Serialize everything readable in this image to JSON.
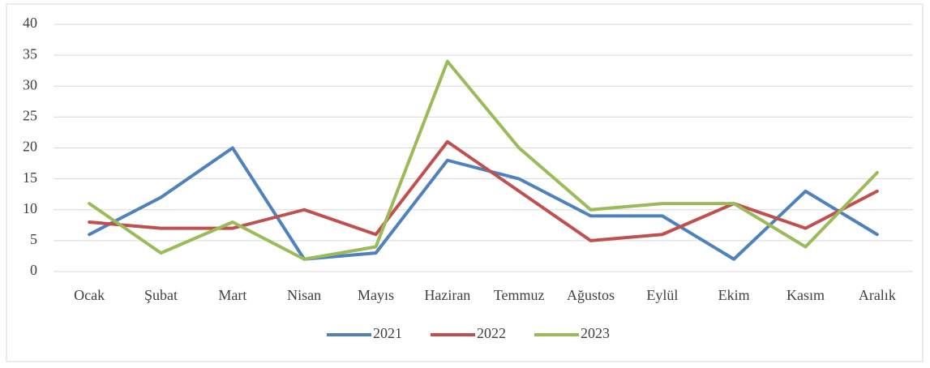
{
  "chart_data": {
    "type": "line",
    "categories": [
      "Ocak",
      "Şubat",
      "Mart",
      "Nisan",
      "Mayıs",
      "Haziran",
      "Temmuz",
      "Ağustos",
      "Eylül",
      "Ekim",
      "Kasım",
      "Aralık"
    ],
    "series": [
      {
        "name": "2021",
        "color": "#4f81bd",
        "values": [
          6,
          12,
          20,
          2,
          3,
          18,
          15,
          9,
          9,
          2,
          13,
          6
        ]
      },
      {
        "name": "2022",
        "color": "#c0504d",
        "values": [
          8,
          7,
          7,
          10,
          6,
          21,
          13,
          5,
          6,
          11,
          7,
          13
        ]
      },
      {
        "name": "2023",
        "color": "#9bbb59",
        "values": [
          11,
          3,
          8,
          2,
          4,
          34,
          20,
          10,
          11,
          11,
          4,
          16
        ]
      }
    ],
    "ylim": [
      0,
      40
    ],
    "yticks": [
      0,
      5,
      10,
      15,
      20,
      25,
      30,
      35,
      40
    ],
    "grid": true,
    "legend": "bottom"
  }
}
